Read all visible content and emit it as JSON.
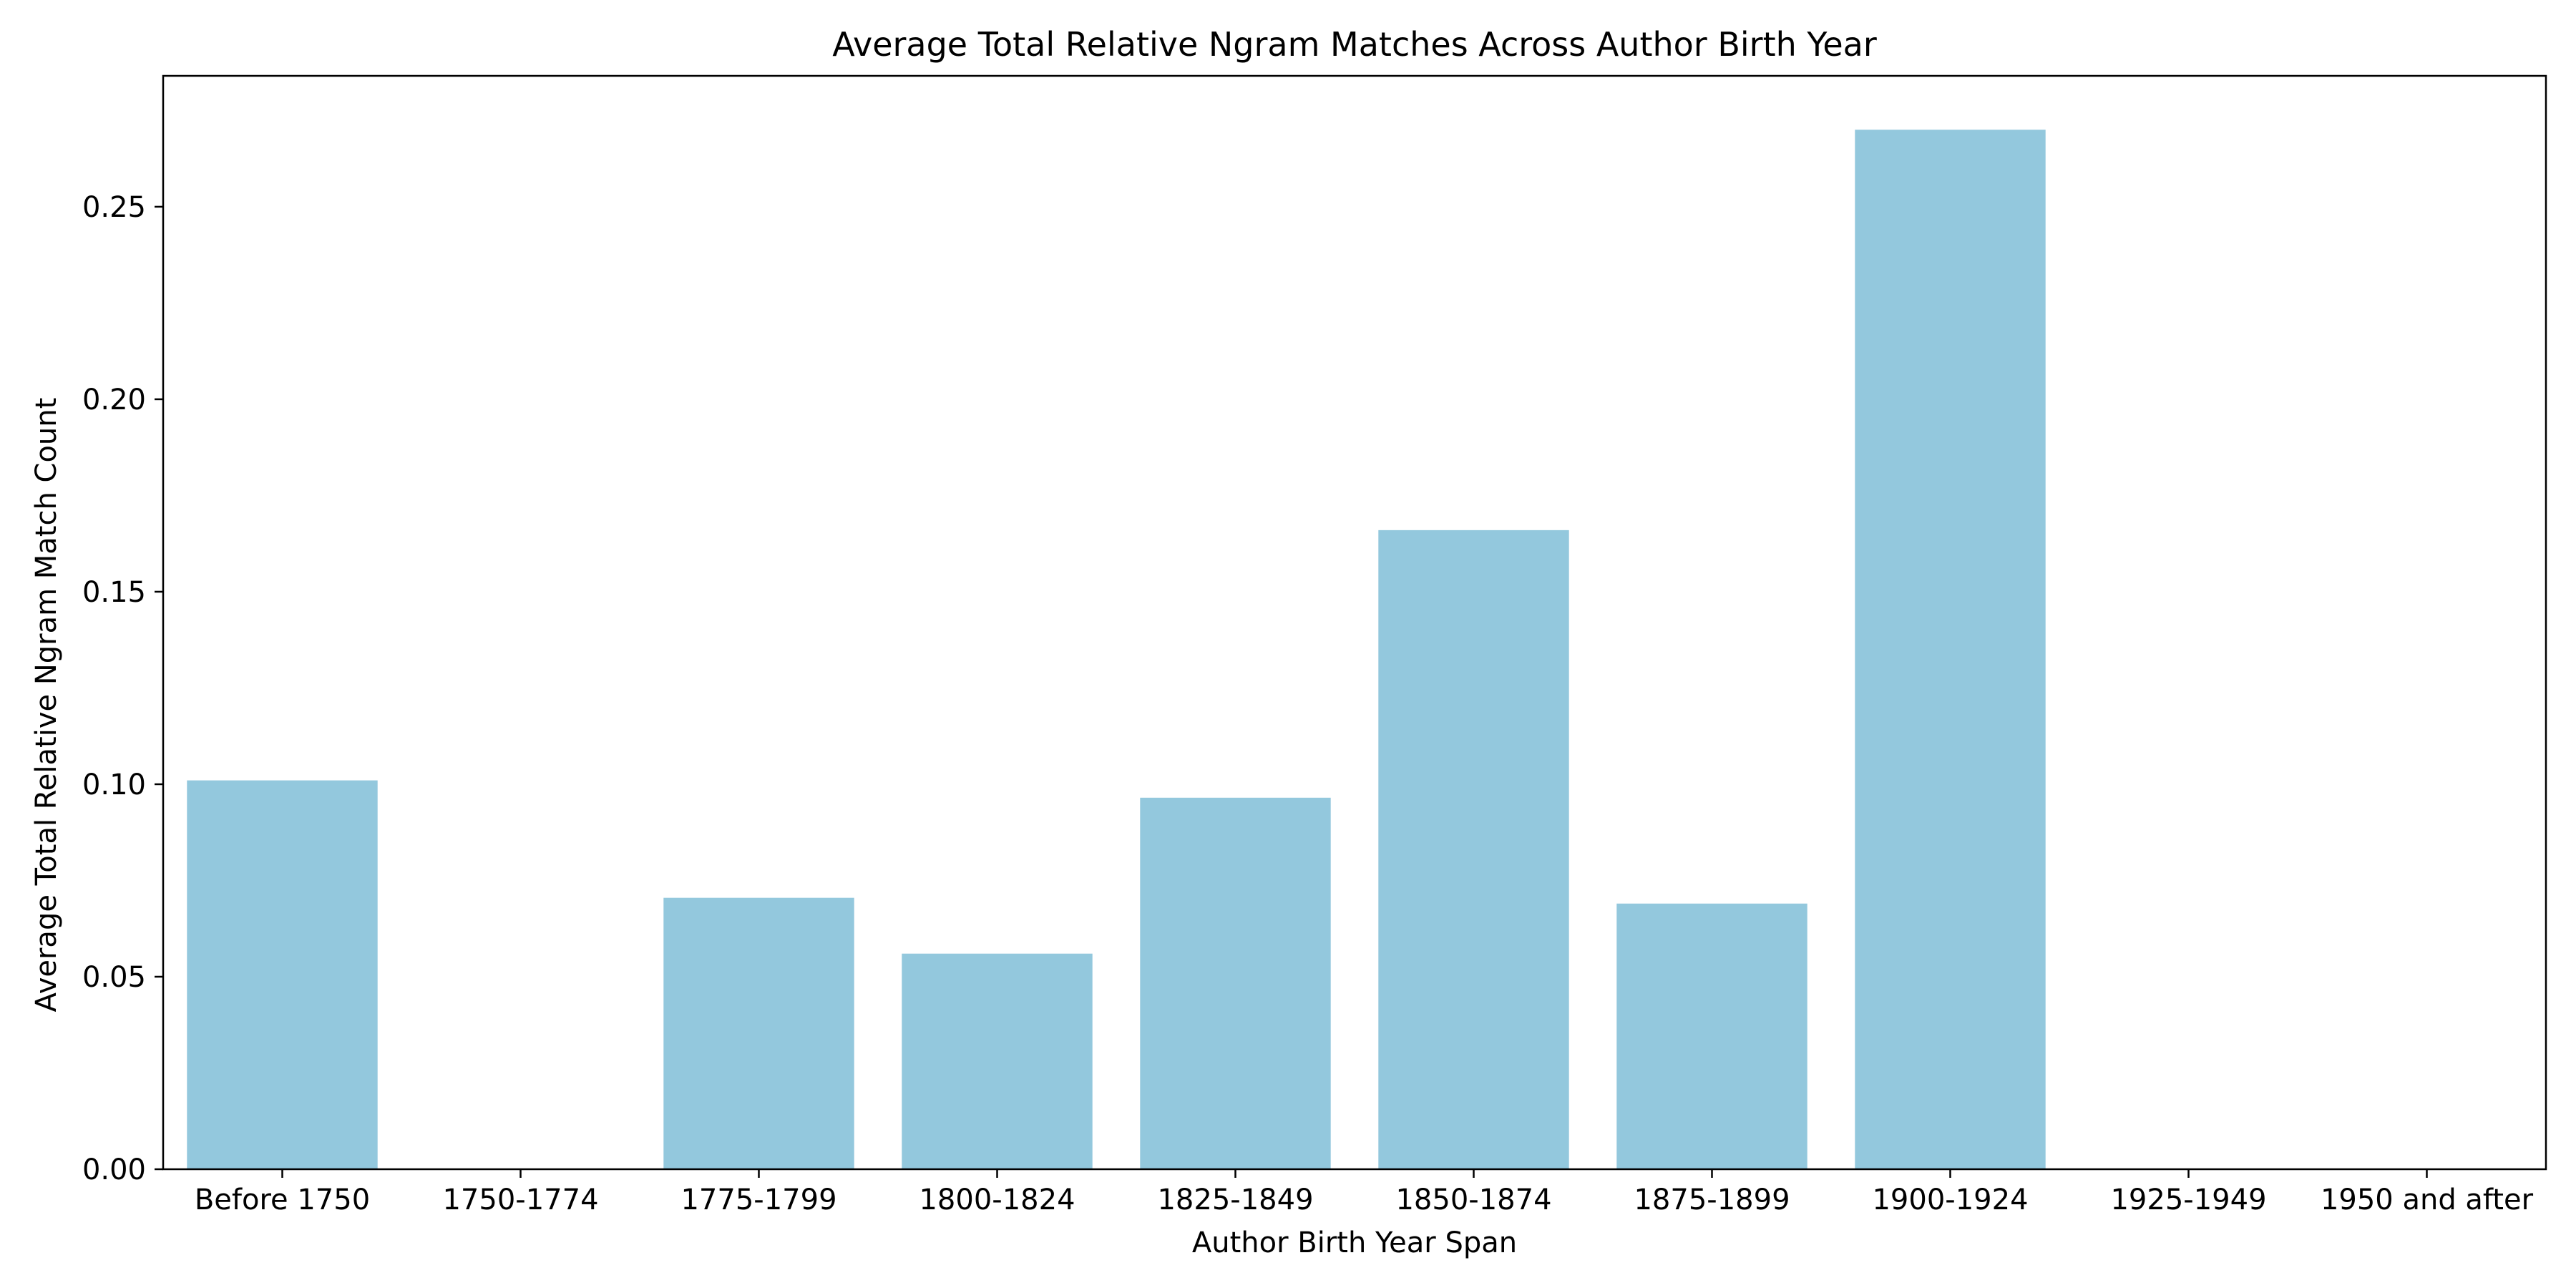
{
  "chart_data": {
    "type": "bar",
    "title": "Average Total Relative Ngram Matches Across Author Birth Year",
    "xlabel": "Author Birth Year Span",
    "ylabel": "Average Total Relative Ngram Match Count",
    "categories": [
      "Before 1750",
      "1750-1774",
      "1775-1799",
      "1800-1824",
      "1825-1849",
      "1850-1874",
      "1875-1899",
      "1900-1924",
      "1925-1949",
      "1950 and after"
    ],
    "values": [
      0.101,
      null,
      0.0705,
      0.056,
      0.0965,
      0.166,
      0.069,
      0.27,
      null,
      null
    ],
    "ylim": [
      0,
      0.284
    ],
    "yticks": [
      0.0,
      0.05,
      0.1,
      0.15,
      0.2,
      0.25
    ],
    "ytick_labels": [
      "0.00",
      "0.05",
      "0.10",
      "0.15",
      "0.20",
      "0.25"
    ],
    "bar_color": "#93c8dd",
    "grid": false,
    "legend": "none"
  }
}
